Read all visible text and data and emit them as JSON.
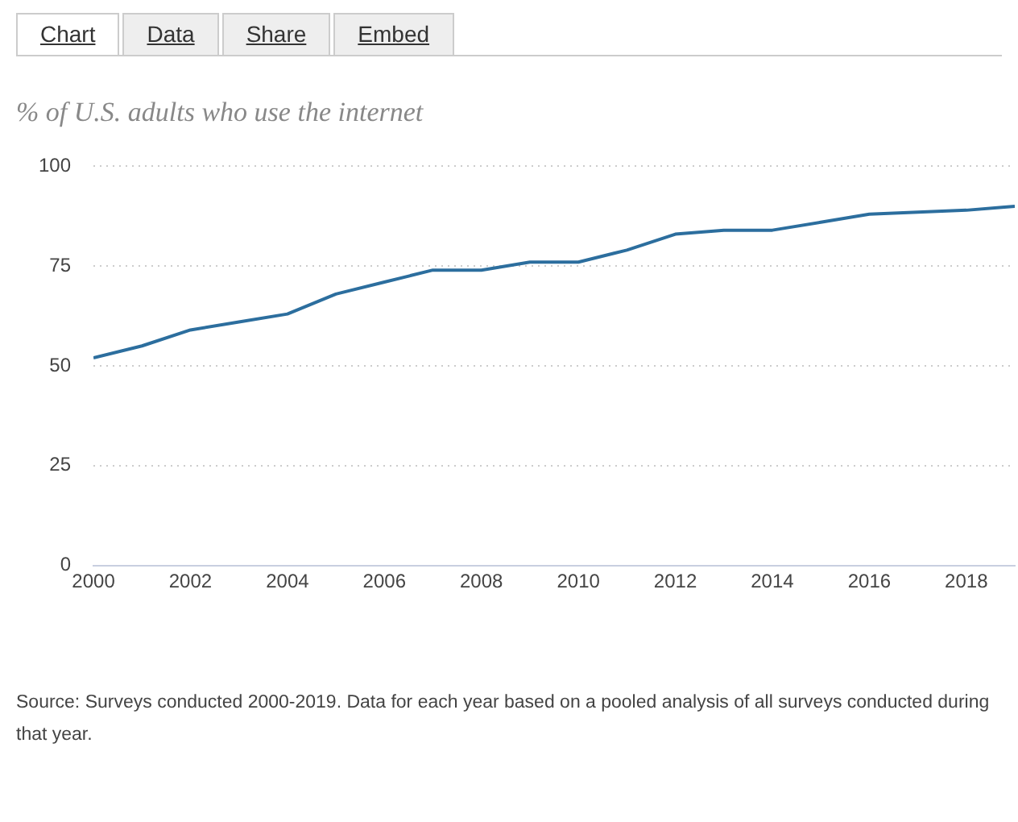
{
  "chart_data": {
    "type": "line",
    "title": "% of U.S. adults who use the internet",
    "x": [
      2000,
      2001,
      2002,
      2003,
      2004,
      2005,
      2006,
      2007,
      2008,
      2009,
      2010,
      2011,
      2012,
      2013,
      2014,
      2015,
      2016,
      2017,
      2018,
      2019
    ],
    "series": [
      {
        "color": "#2c6e9e",
        "values": [
          52,
          55,
          59,
          61,
          63,
          68,
          71,
          74,
          74,
          76,
          76,
          79,
          83,
          84,
          84,
          86,
          88,
          88.5,
          89,
          90
        ]
      }
    ],
    "xlim": [
      2000,
      2019
    ],
    "xticks": [
      2000,
      2002,
      2004,
      2006,
      2008,
      2010,
      2012,
      2014,
      2016,
      2018
    ],
    "ylim": [
      0,
      100
    ],
    "yticks": [
      0,
      25,
      50,
      75,
      100
    ],
    "grid": "y",
    "marker": "none",
    "line_style": "solid",
    "legend": false,
    "annotations": [
      "Chart",
      "Data",
      "Share",
      "Embed",
      "Source: Surveys conducted 2000-2019. Data for each year based on a pooled analysis of all surveys conducted during that year."
    ]
  }
}
